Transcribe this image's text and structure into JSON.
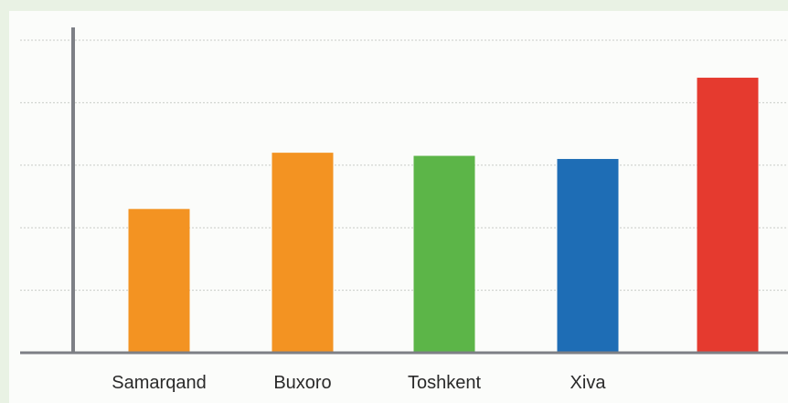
{
  "chart_data": {
    "type": "bar",
    "categories": [
      "Samarqand",
      "Buxoro",
      "Toshkent",
      "Xiva",
      ""
    ],
    "values": [
      2.3,
      3.2,
      3.15,
      3.1,
      4.4
    ],
    "colors": [
      "#f39322",
      "#f39322",
      "#5cb548",
      "#1e6db5",
      "#e53a2f"
    ],
    "ylim": [
      0,
      5
    ],
    "grid": true,
    "gridline_values": [
      1,
      2,
      3,
      4,
      5
    ],
    "title": "",
    "xlabel": "",
    "ylabel": ""
  }
}
